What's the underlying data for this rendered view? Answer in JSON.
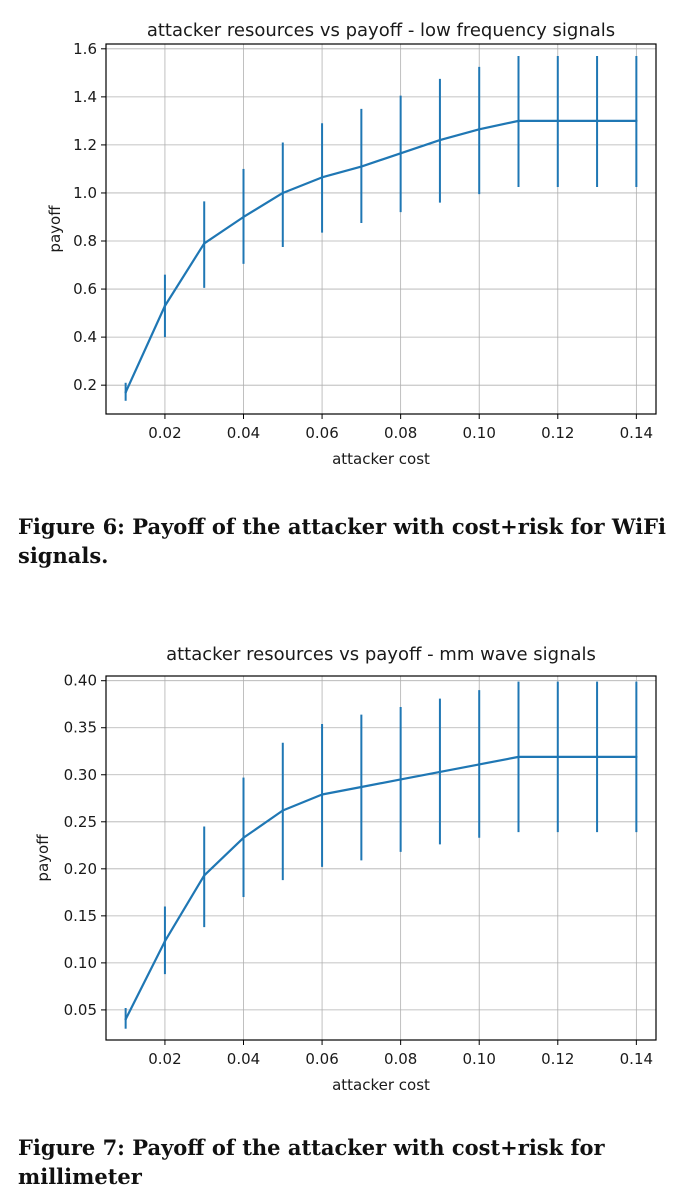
{
  "chart_data": [
    {
      "type": "line",
      "title": "attacker resources vs payoff - low frequency signals",
      "xlabel": "attacker cost",
      "ylabel": "payoff",
      "xlim": [
        0.005,
        0.145
      ],
      "ylim": [
        0.08,
        1.62
      ],
      "xticks": [
        0.02,
        0.04,
        0.06,
        0.08,
        0.1,
        0.12,
        0.14
      ],
      "xtick_labels": [
        "0.02",
        "0.04",
        "0.06",
        "0.08",
        "0.10",
        "0.12",
        "0.14"
      ],
      "yticks": [
        0.2,
        0.4,
        0.6,
        0.8,
        1.0,
        1.2,
        1.4,
        1.6
      ],
      "ytick_labels": [
        "0.2",
        "0.4",
        "0.6",
        "0.8",
        "1.0",
        "1.2",
        "1.4",
        "1.6"
      ],
      "grid": true,
      "color": "#1f77b4",
      "x": [
        0.01,
        0.02,
        0.03,
        0.04,
        0.05,
        0.06,
        0.07,
        0.08,
        0.09,
        0.1,
        0.11,
        0.12,
        0.13,
        0.14
      ],
      "y": [
        0.17,
        0.53,
        0.79,
        0.9,
        1.0,
        1.065,
        1.11,
        1.165,
        1.22,
        1.265,
        1.3,
        1.3,
        1.3,
        1.3
      ],
      "err_low": [
        0.135,
        0.4,
        0.605,
        0.705,
        0.775,
        0.835,
        0.875,
        0.92,
        0.96,
        0.995,
        1.025,
        1.025,
        1.025,
        1.025
      ],
      "err_high": [
        0.21,
        0.66,
        0.965,
        1.1,
        1.21,
        1.29,
        1.35,
        1.405,
        1.475,
        1.525,
        1.57,
        1.57,
        1.57,
        1.57
      ]
    },
    {
      "type": "line",
      "title": "attacker resources vs payoff - mm wave signals",
      "xlabel": "attacker cost",
      "ylabel": "payoff",
      "xlim": [
        0.005,
        0.145
      ],
      "ylim": [
        0.018,
        0.405
      ],
      "xticks": [
        0.02,
        0.04,
        0.06,
        0.08,
        0.1,
        0.12,
        0.14
      ],
      "xtick_labels": [
        "0.02",
        "0.04",
        "0.06",
        "0.08",
        "0.10",
        "0.12",
        "0.14"
      ],
      "yticks": [
        0.05,
        0.1,
        0.15,
        0.2,
        0.25,
        0.3,
        0.35,
        0.4
      ],
      "ytick_labels": [
        "0.05",
        "0.10",
        "0.15",
        "0.20",
        "0.25",
        "0.30",
        "0.35",
        "0.40"
      ],
      "grid": true,
      "color": "#1f77b4",
      "x": [
        0.01,
        0.02,
        0.03,
        0.04,
        0.05,
        0.06,
        0.07,
        0.08,
        0.09,
        0.1,
        0.11,
        0.12,
        0.13,
        0.14
      ],
      "y": [
        0.04,
        0.123,
        0.193,
        0.233,
        0.262,
        0.279,
        0.287,
        0.295,
        0.303,
        0.311,
        0.319,
        0.319,
        0.319,
        0.319
      ],
      "err_low": [
        0.03,
        0.088,
        0.138,
        0.17,
        0.188,
        0.202,
        0.209,
        0.218,
        0.226,
        0.233,
        0.239,
        0.239,
        0.239,
        0.239
      ],
      "err_high": [
        0.052,
        0.16,
        0.245,
        0.297,
        0.334,
        0.354,
        0.364,
        0.372,
        0.381,
        0.39,
        0.399,
        0.399,
        0.399,
        0.399
      ]
    }
  ],
  "captions": {
    "fig6": "Figure 6: Payoff of the attacker with cost+risk for WiFi signals.",
    "fig7": "Figure 7: Payoff of the attacker with cost+risk for millimeter"
  }
}
